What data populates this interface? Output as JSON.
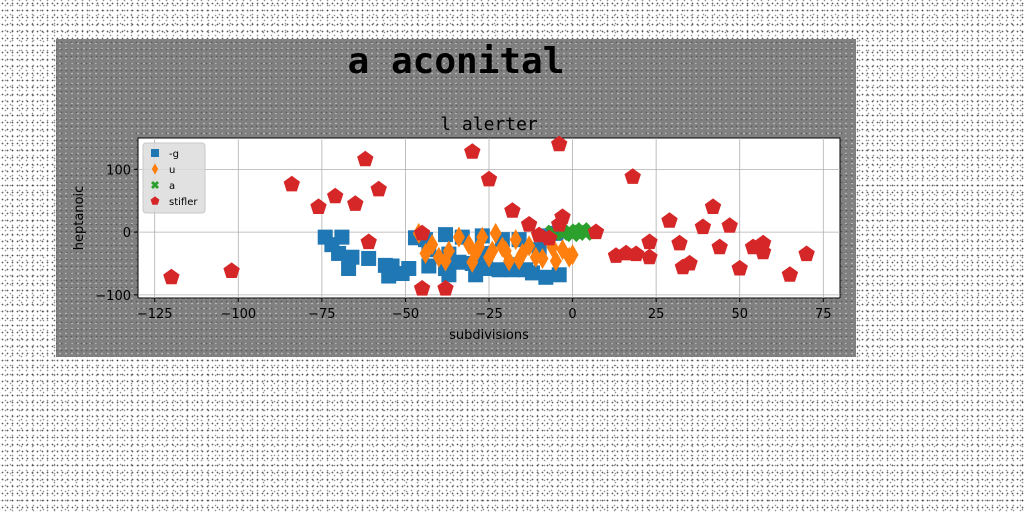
{
  "chart_data": {
    "type": "scatter",
    "figure_title": "a aconital",
    "title": "l alerter",
    "xlabel": "subdivisions",
    "ylabel": "heptanoic",
    "xlim": [
      -130,
      80
    ],
    "ylim": [
      -105,
      150
    ],
    "xticks": [
      -125,
      -100,
      -75,
      -50,
      -25,
      0,
      25,
      50,
      75
    ],
    "yticks": [
      -100,
      0,
      100
    ],
    "grid": true,
    "legend_position": "top-left",
    "series": [
      {
        "name": "-g",
        "marker": "square",
        "color": "#1f77b4",
        "points": [
          [
            -74,
            -8
          ],
          [
            -69,
            -8
          ],
          [
            -72,
            -20
          ],
          [
            -66,
            -40
          ],
          [
            -70,
            -34
          ],
          [
            -67,
            -58
          ],
          [
            -61,
            -42
          ],
          [
            -56,
            -53
          ],
          [
            -54,
            -54
          ],
          [
            -49,
            -58
          ],
          [
            -47,
            -9
          ],
          [
            -44,
            -12
          ],
          [
            -55,
            -70
          ],
          [
            -51,
            -66
          ],
          [
            -43,
            -54
          ],
          [
            -38,
            -58
          ],
          [
            -34,
            -48
          ],
          [
            -30,
            -50
          ],
          [
            -26,
            -58
          ],
          [
            -22,
            -60
          ],
          [
            -18,
            -60
          ],
          [
            -14,
            -60
          ],
          [
            -37,
            -68
          ],
          [
            -29,
            -68
          ],
          [
            -17,
            -52
          ],
          [
            -12,
            -65
          ],
          [
            -8,
            -72
          ],
          [
            -4,
            -68
          ],
          [
            -38,
            -4
          ],
          [
            -33,
            -8
          ],
          [
            -27,
            -6
          ],
          [
            -21,
            -12
          ],
          [
            -16,
            -12
          ],
          [
            -10,
            -28
          ],
          [
            -8,
            -6
          ],
          [
            -5,
            -2
          ],
          [
            -43,
            -28
          ],
          [
            -37,
            -35
          ],
          [
            -26,
            -34
          ]
        ]
      },
      {
        "name": "u",
        "marker": "diamond",
        "color": "#ff7f0e",
        "points": [
          [
            -46,
            -2
          ],
          [
            -42,
            -20
          ],
          [
            -40,
            -40
          ],
          [
            -37,
            -30
          ],
          [
            -34,
            -8
          ],
          [
            -31,
            -20
          ],
          [
            -29,
            -34
          ],
          [
            -27,
            -8
          ],
          [
            -25,
            -40
          ],
          [
            -23,
            -2
          ],
          [
            -21,
            -24
          ],
          [
            -19,
            -46
          ],
          [
            -17,
            -12
          ],
          [
            -15,
            -34
          ],
          [
            -13,
            -22
          ],
          [
            -11,
            -40
          ],
          [
            -9,
            -42
          ],
          [
            -7,
            -10
          ],
          [
            -5,
            -46
          ],
          [
            -3,
            -28
          ],
          [
            -1,
            -40
          ],
          [
            0,
            -36
          ],
          [
            -38,
            -46
          ],
          [
            -30,
            -48
          ],
          [
            -20,
            -30
          ],
          [
            -44,
            -34
          ],
          [
            -28,
            -24
          ],
          [
            -24,
            -30
          ],
          [
            -16,
            -44
          ],
          [
            -6,
            -24
          ]
        ]
      },
      {
        "name": "a",
        "marker": "x-square",
        "color": "#2ca02c",
        "points": [
          [
            -6,
            0
          ],
          [
            -3,
            -2
          ],
          [
            0,
            -4
          ],
          [
            2,
            0
          ],
          [
            4,
            -2
          ],
          [
            -1,
            2
          ],
          [
            3,
            4
          ]
        ]
      },
      {
        "name": "stifler",
        "marker": "pentagon",
        "color": "#d62728",
        "points": [
          [
            -120,
            -72
          ],
          [
            -102,
            -62
          ],
          [
            -84,
            76
          ],
          [
            -76,
            40
          ],
          [
            -71,
            57
          ],
          [
            -65,
            45
          ],
          [
            -62,
            116
          ],
          [
            -61,
            -16
          ],
          [
            -58,
            68
          ],
          [
            -45,
            -2
          ],
          [
            -45,
            -90
          ],
          [
            -38,
            -90
          ],
          [
            -30,
            128
          ],
          [
            -25,
            84
          ],
          [
            -18,
            34
          ],
          [
            -13,
            12
          ],
          [
            -10,
            -5
          ],
          [
            -7,
            -10
          ],
          [
            -4,
            140
          ],
          [
            -3,
            24
          ],
          [
            -4,
            12
          ],
          [
            7,
            0
          ],
          [
            13,
            -38
          ],
          [
            16,
            -34
          ],
          [
            19,
            -35
          ],
          [
            18,
            88
          ],
          [
            23,
            -40
          ],
          [
            23,
            -16
          ],
          [
            29,
            18
          ],
          [
            32,
            -18
          ],
          [
            33,
            -56
          ],
          [
            35,
            -50
          ],
          [
            39,
            8
          ],
          [
            42,
            40
          ],
          [
            44,
            -24
          ],
          [
            47,
            10
          ],
          [
            50,
            -58
          ],
          [
            54,
            -24
          ],
          [
            57,
            -18
          ],
          [
            57,
            -32
          ],
          [
            65,
            -68
          ],
          [
            70,
            -35
          ]
        ]
      }
    ]
  }
}
